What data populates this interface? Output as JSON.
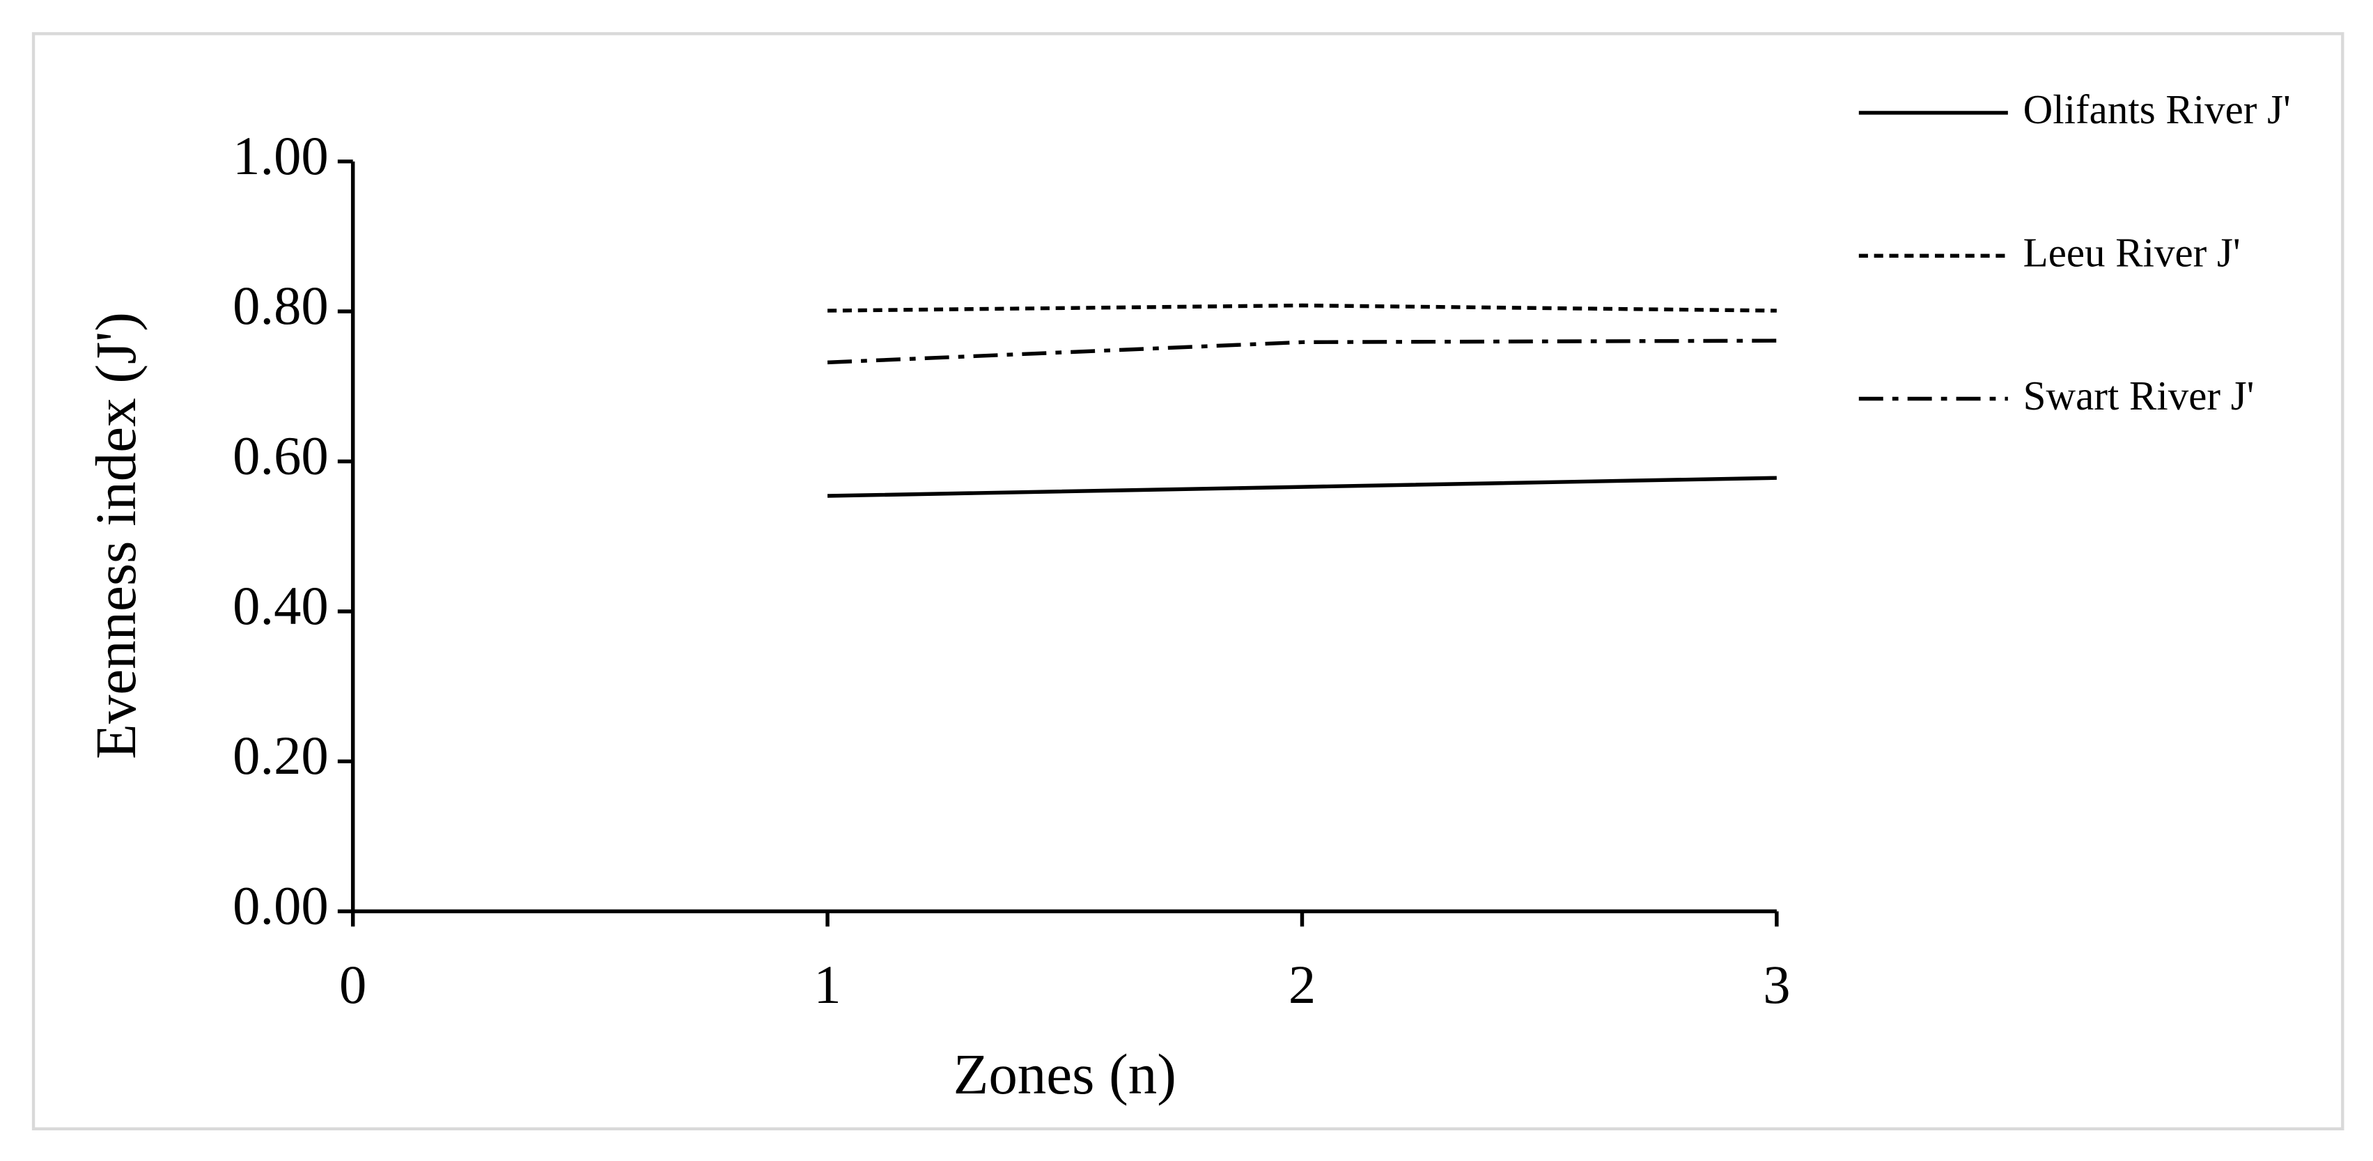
{
  "chart_data": {
    "type": "line",
    "x_label": "Zones (n)",
    "y_label": "Evenness index (J')",
    "xlim": [
      0,
      3
    ],
    "xticks": [
      0,
      1,
      2,
      3
    ],
    "ylim": [
      0,
      1
    ],
    "yticks": [
      {
        "value": 0,
        "label": "0.00"
      },
      {
        "value": 0.2,
        "label": "0.20"
      },
      {
        "value": 0.4,
        "label": "0.40"
      },
      {
        "value": 0.6,
        "label": "0.60"
      },
      {
        "value": 0.8,
        "label": "0.80"
      },
      {
        "value": 1,
        "label": "1.00"
      }
    ],
    "x": [
      1,
      2,
      3
    ],
    "series": [
      {
        "name": "Olifants River J'",
        "color": "#000000",
        "dash": "solid",
        "values": [
          0.554,
          0.566,
          0.578
        ]
      },
      {
        "name": "Leeu River J'",
        "color": "#000000",
        "dash": "dashed",
        "values": [
          0.801,
          0.808,
          0.801
        ]
      },
      {
        "name": "Swart River J'",
        "color": "#000000",
        "dash": "dashdot",
        "values": [
          0.732,
          0.759,
          0.761
        ]
      }
    ],
    "legend": "right"
  }
}
